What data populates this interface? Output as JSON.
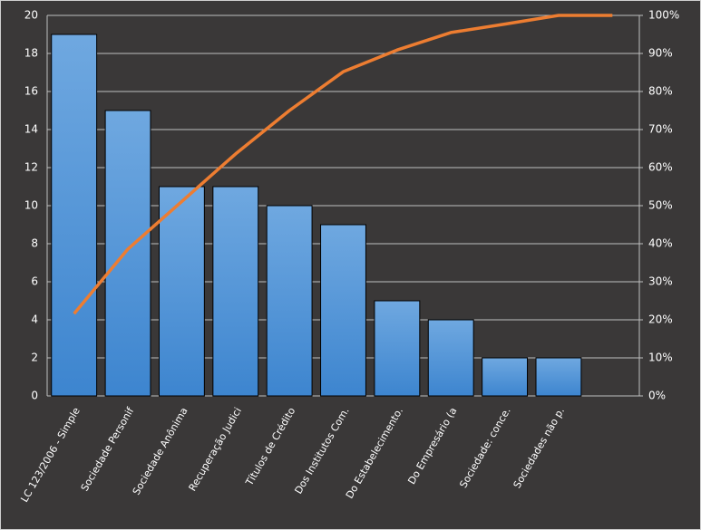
{
  "chart_data": {
    "type": "pareto",
    "categories": [
      "LC 123/2006 - Simple",
      "Sociedade Personif",
      "Sociedade Anônima",
      "Recuperação Judici",
      "Títulos de Crédito",
      "Dos Institutos Com.",
      "Do Estabelecimento.",
      "Do Empresário (a",
      "Sociedade: conce.",
      "Sociedades não p.",
      null
    ],
    "series": [
      {
        "type": "bar",
        "color": "#4a90d9",
        "values": [
          19,
          15,
          11,
          11,
          10,
          9,
          5,
          4,
          2,
          2,
          null
        ]
      },
      {
        "type": "line",
        "axis": "y2",
        "color": "#ed7d31",
        "values": [
          21.6,
          38.6,
          51.1,
          63.6,
          75,
          85.2,
          90.9,
          95.5,
          97.7,
          100,
          100
        ]
      }
    ],
    "ylim": [
      0,
      20
    ],
    "yticks": [
      0,
      2,
      4,
      6,
      8,
      10,
      12,
      14,
      16,
      18,
      20
    ],
    "y2lim": [
      0,
      100
    ],
    "y2ticks": [
      {
        "value": 0,
        "label": "0%"
      },
      {
        "value": 10,
        "label": "10%"
      },
      {
        "value": 20,
        "label": "20%"
      },
      {
        "value": 30,
        "label": "30%"
      },
      {
        "value": 40,
        "label": "40%"
      },
      {
        "value": 50,
        "label": "50%"
      },
      {
        "value": 60,
        "label": "60%"
      },
      {
        "value": 70,
        "label": "70%"
      },
      {
        "value": 80,
        "label": "80%"
      },
      {
        "value": 90,
        "label": "90%"
      },
      {
        "value": 100,
        "label": "100%"
      }
    ],
    "grid": true
  }
}
